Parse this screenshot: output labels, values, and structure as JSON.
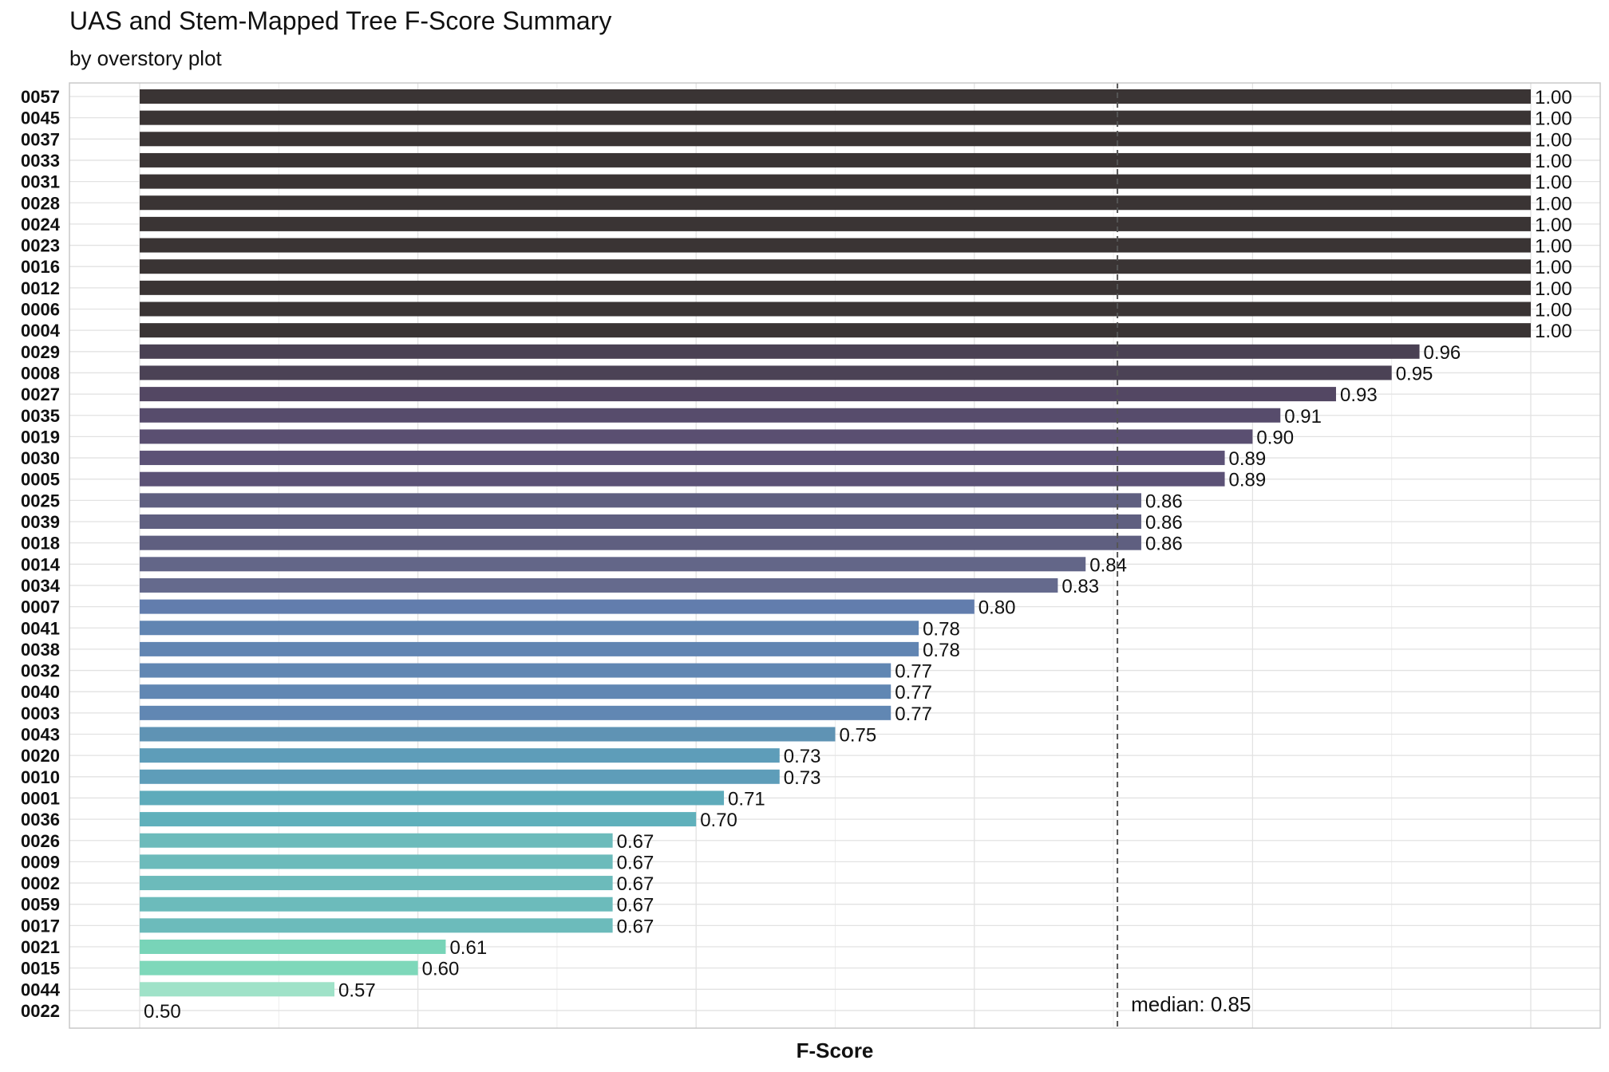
{
  "chart_data": {
    "type": "bar",
    "orientation": "horizontal",
    "title": "UAS and Stem-Mapped Tree F-Score Summary",
    "subtitle": "by overstory plot",
    "xlabel": "F-Score",
    "ylabel": "",
    "xlim": [
      0.5,
      1.0
    ],
    "grid": true,
    "categories": [
      "0057",
      "0045",
      "0037",
      "0033",
      "0031",
      "0028",
      "0024",
      "0023",
      "0016",
      "0012",
      "0006",
      "0004",
      "0029",
      "0008",
      "0027",
      "0035",
      "0019",
      "0030",
      "0005",
      "0025",
      "0039",
      "0018",
      "0014",
      "0034",
      "0007",
      "0041",
      "0038",
      "0032",
      "0040",
      "0003",
      "0043",
      "0020",
      "0010",
      "0001",
      "0036",
      "0026",
      "0009",
      "0002",
      "0059",
      "0017",
      "0021",
      "0015",
      "0044",
      "0022"
    ],
    "values": [
      1.0,
      1.0,
      1.0,
      1.0,
      1.0,
      1.0,
      1.0,
      1.0,
      1.0,
      1.0,
      1.0,
      1.0,
      0.96,
      0.95,
      0.93,
      0.91,
      0.9,
      0.89,
      0.89,
      0.86,
      0.86,
      0.86,
      0.84,
      0.83,
      0.8,
      0.78,
      0.78,
      0.77,
      0.77,
      0.77,
      0.75,
      0.73,
      0.73,
      0.71,
      0.7,
      0.67,
      0.67,
      0.67,
      0.67,
      0.67,
      0.61,
      0.6,
      0.57,
      0.5
    ],
    "value_labels": [
      "1.00",
      "1.00",
      "1.00",
      "1.00",
      "1.00",
      "1.00",
      "1.00",
      "1.00",
      "1.00",
      "1.00",
      "1.00",
      "1.00",
      "0.96",
      "0.95",
      "0.93",
      "0.91",
      "0.90",
      "0.89",
      "0.89",
      "0.86",
      "0.86",
      "0.86",
      "0.84",
      "0.83",
      "0.80",
      "0.78",
      "0.78",
      "0.77",
      "0.77",
      "0.77",
      "0.75",
      "0.73",
      "0.73",
      "0.71",
      "0.70",
      "0.67",
      "0.67",
      "0.67",
      "0.67",
      "0.67",
      "0.61",
      "0.60",
      "0.57",
      "0.50"
    ],
    "median": 0.85,
    "median_label": "median: 0.85",
    "colors": [
      "#3a3434",
      "#3a3434",
      "#3a3434",
      "#3a3434",
      "#3a3434",
      "#3a3434",
      "#3a3434",
      "#3a3434",
      "#3a3434",
      "#3a3434",
      "#3a3434",
      "#3a3434",
      "#4a4153",
      "#4b4255",
      "#534763",
      "#574c6c",
      "#5a4f71",
      "#5c5276",
      "#5c5276",
      "#5f5f80",
      "#5f5f80",
      "#5f5f80",
      "#636688",
      "#656a8d",
      "#627dad",
      "#6185b2",
      "#6185b2",
      "#6187b3",
      "#6187b3",
      "#6187b3",
      "#5f93b4",
      "#5e9db9",
      "#5e9db9",
      "#5eabbb",
      "#5fb0bb",
      "#6cbbbb",
      "#6cbbbb",
      "#6cbbbb",
      "#6cbbbb",
      "#6cbbbb",
      "#78d4b8",
      "#7ed8ba",
      "#9fe2c8",
      "#e6f4ec"
    ]
  }
}
